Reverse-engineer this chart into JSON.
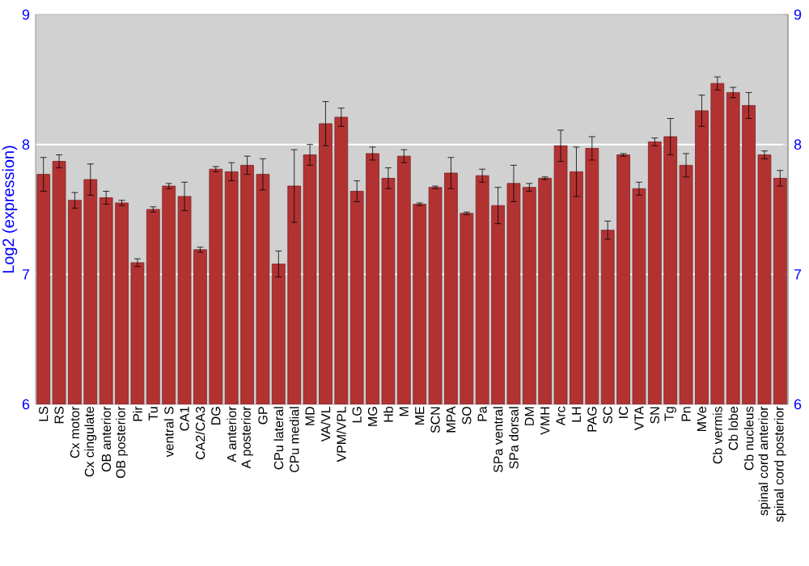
{
  "chart_data": {
    "type": "bar",
    "ylabel": "Log2 (expression)",
    "categories": [
      "LS",
      "RS",
      "Cx motor",
      "Cx cingulate",
      "OB anterior",
      "OB posterior",
      "Pir",
      "Tu",
      "ventral S",
      "CA1",
      "CA2/CA3",
      "DG",
      "A anterior",
      "A posterior",
      "GP",
      "CPu lateral",
      "CPu medial",
      "MD",
      "VA/VL",
      "VPM/VPL",
      "LG",
      "MG",
      "Hb",
      "M",
      "ME",
      "SCN",
      "MPA",
      "SO",
      "Pa",
      "SPa ventral",
      "SPa dorsal",
      "DM",
      "VMH",
      "Arc",
      "LH",
      "PAG",
      "SC",
      "IC",
      "VTA",
      "SN",
      "Tg",
      "Pn",
      "MVe",
      "Cb vermis",
      "Cb lobe",
      "Cb nucleus",
      "spinal cord anterior",
      "spinal cord posterior"
    ],
    "values": [
      7.77,
      7.87,
      7.57,
      7.73,
      7.59,
      7.55,
      7.09,
      7.5,
      7.68,
      7.6,
      7.19,
      7.81,
      7.79,
      7.84,
      7.77,
      7.08,
      7.68,
      7.92,
      8.16,
      8.21,
      7.64,
      7.93,
      7.74,
      7.91,
      7.54,
      7.67,
      7.78,
      7.47,
      7.76,
      7.53,
      7.7,
      7.67,
      7.74,
      7.99,
      7.79,
      7.97,
      7.34,
      7.92,
      7.66,
      8.02,
      8.06,
      7.84,
      8.26,
      8.47,
      8.4,
      8.3,
      7.92,
      7.74
    ],
    "errors": [
      0.13,
      0.05,
      0.06,
      0.12,
      0.05,
      0.02,
      0.03,
      0.02,
      0.02,
      0.11,
      0.02,
      0.02,
      0.07,
      0.07,
      0.12,
      0.1,
      0.28,
      0.08,
      0.17,
      0.07,
      0.08,
      0.05,
      0.08,
      0.05,
      0.01,
      0.01,
      0.12,
      0.01,
      0.05,
      0.14,
      0.14,
      0.03,
      0.01,
      0.12,
      0.19,
      0.09,
      0.07,
      0.01,
      0.05,
      0.03,
      0.14,
      0.09,
      0.12,
      0.05,
      0.04,
      0.1,
      0.03,
      0.06
    ],
    "color": "#b23232",
    "ylim": [
      6,
      9
    ],
    "yticks": [
      6,
      7,
      8,
      9
    ],
    "y2lim": [
      6,
      9
    ],
    "y2ticks": [
      6,
      7,
      8,
      9
    ],
    "grid": "y"
  }
}
